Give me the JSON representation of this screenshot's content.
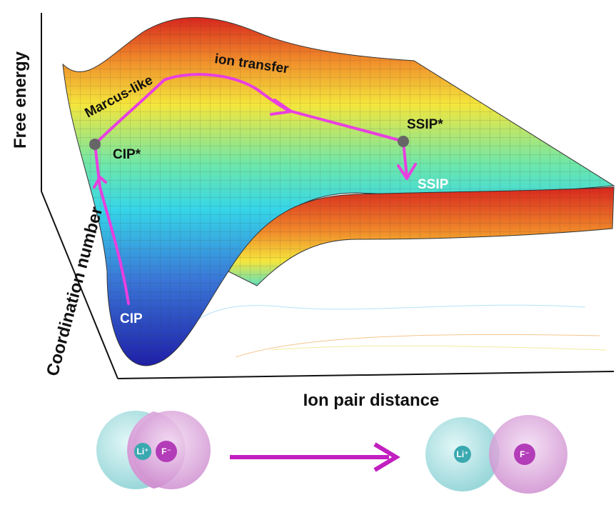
{
  "axes": {
    "z_label": "Free energy",
    "y_label": "Coordination number",
    "x_label": "Ion pair distance"
  },
  "annotations": {
    "path_label_1": "Marcus-like",
    "path_label_2": "ion transfer",
    "cip_star": "CIP*",
    "ssip_star": "SSIP*",
    "ssip": "SSIP",
    "cip": "CIP"
  },
  "molecules": [
    {
      "cation": "Li⁺",
      "anion": "F⁻"
    },
    {
      "cation": "Li⁺",
      "anion": "F⁻"
    }
  ]
}
